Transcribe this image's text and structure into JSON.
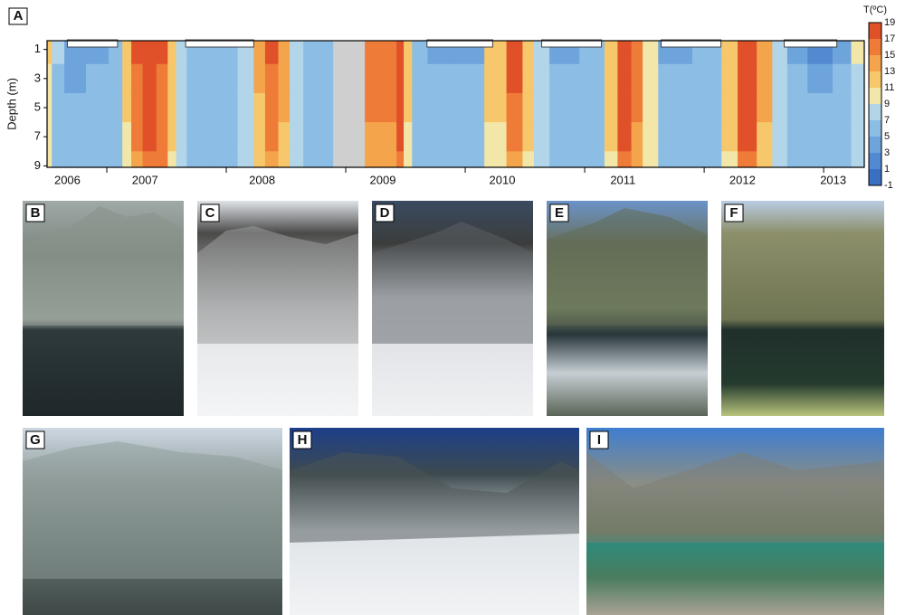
{
  "chart_data": {
    "type": "heatmap",
    "panel": "A",
    "ylabel": "Depth (m)",
    "colorbar_title": "T(ºC)",
    "xlim": [
      2006.5,
      2013.34
    ],
    "ylim": [
      0.4,
      9.1
    ],
    "xticks": [
      {
        "value": 2006.67,
        "label": "2006"
      },
      {
        "value": 2007.32,
        "label": "2007"
      },
      {
        "value": 2008.3,
        "label": "2008"
      },
      {
        "value": 2009.31,
        "label": "2009"
      },
      {
        "value": 2010.31,
        "label": "2010"
      },
      {
        "value": 2011.32,
        "label": "2011"
      },
      {
        "value": 2012.32,
        "label": "2012"
      },
      {
        "value": 2013.08,
        "label": "2013"
      }
    ],
    "xminor": [
      2007,
      2008,
      2009,
      2010,
      2011,
      2012,
      2013
    ],
    "yticks": [
      1,
      3,
      5,
      7,
      9
    ],
    "levels": [
      19,
      17,
      15,
      13,
      11,
      9,
      7,
      5,
      3,
      1,
      -1
    ],
    "colors": [
      "#3b6fc2",
      "#5289d0",
      "#6ca4db",
      "#8cbde4",
      "#b2d5ea",
      "#f2e7a8",
      "#f7c76b",
      "#f4a44b",
      "#ee7b37",
      "#e0512a"
    ],
    "missing_color": "#cfcfcf",
    "y": [
      1,
      3,
      5,
      7,
      9
    ],
    "x": [
      2006.5,
      2006.58,
      2006.71,
      2006.94,
      2007.09,
      2007.17,
      2007.24,
      2007.36,
      2007.47,
      2007.55,
      2007.61,
      2007.73,
      2008.0,
      2008.19,
      2008.27,
      2008.38,
      2008.49,
      2008.57,
      2008.72,
      2008.87,
      2008.92,
      2009.4,
      2009.45,
      2009.52,
      2009.59,
      2009.78,
      2010.05,
      2010.27,
      2010.42,
      2010.54,
      2010.61,
      2010.8,
      2011.11,
      2011.22,
      2011.33,
      2011.45,
      2011.52,
      2011.71,
      2012.09,
      2012.2,
      2012.36,
      2012.52,
      2012.62,
      2012.77,
      2012.96,
      2013.19,
      2013.27
    ],
    "values": [
      [
        11,
        10,
        9,
        9,
        9
      ],
      [
        7,
        6,
        6,
        6,
        6
      ],
      [
        4,
        4,
        5,
        5,
        5
      ],
      [
        4,
        5,
        5,
        5,
        5
      ],
      [
        6,
        6,
        6,
        6,
        6
      ],
      [
        12,
        11,
        11,
        10,
        10
      ],
      [
        17,
        16,
        15,
        15,
        14
      ],
      [
        19,
        18,
        17,
        17,
        16
      ],
      [
        17,
        16,
        16,
        15,
        15
      ],
      [
        12,
        11,
        11,
        11,
        10
      ],
      [
        8,
        8,
        8,
        8,
        8
      ],
      [
        6,
        6,
        6,
        6,
        6
      ],
      [
        5,
        5,
        6,
        6,
        6
      ],
      [
        8,
        7,
        7,
        7,
        7
      ],
      [
        13,
        13,
        12,
        12,
        11
      ],
      [
        17,
        16,
        16,
        15,
        14
      ],
      [
        13,
        13,
        13,
        12,
        12
      ],
      [
        8,
        8,
        8,
        8,
        8
      ],
      [
        6,
        6,
        6,
        6,
        6
      ],
      [
        6,
        6,
        6,
        6,
        6
      ],
      [
        null,
        null,
        null,
        null,
        null
      ],
      [
        15,
        15,
        15,
        14,
        14
      ],
      [
        18,
        18,
        17,
        17,
        16
      ],
      [
        11,
        11,
        11,
        10,
        10
      ],
      [
        6,
        6,
        6,
        6,
        6
      ],
      [
        3,
        5,
        5,
        5,
        5
      ],
      [
        4,
        5,
        6,
        6,
        6
      ],
      [
        12,
        11,
        11,
        10,
        10
      ],
      [
        17,
        17,
        16,
        15,
        14
      ],
      [
        12,
        12,
        11,
        11,
        10
      ],
      [
        7,
        7,
        7,
        7,
        7
      ],
      [
        3,
        5,
        5,
        5,
        6
      ],
      [
        5,
        6,
        6,
        6,
        6
      ],
      [
        12,
        12,
        11,
        11,
        10
      ],
      [
        18,
        18,
        17,
        17,
        16
      ],
      [
        15,
        15,
        15,
        14,
        13
      ],
      [
        9,
        9,
        9,
        9,
        9
      ],
      [
        4,
        5,
        6,
        6,
        6
      ],
      [
        5,
        5,
        6,
        6,
        6
      ],
      [
        12,
        12,
        11,
        11,
        10
      ],
      [
        18,
        18,
        17,
        17,
        16
      ],
      [
        13,
        13,
        13,
        12,
        12
      ],
      [
        7,
        7,
        7,
        7,
        7
      ],
      [
        4,
        5,
        6,
        6,
        6
      ],
      [
        2,
        4,
        5,
        6,
        6
      ],
      [
        4,
        5,
        6,
        6,
        6
      ],
      [
        9,
        8,
        8,
        8,
        8
      ]
    ],
    "ice_cover": [
      [
        2006.67,
        2007.09
      ],
      [
        2007.66,
        2008.23
      ],
      [
        2009.68,
        2010.23
      ],
      [
        2010.64,
        2011.14
      ],
      [
        2011.64,
        2012.14
      ],
      [
        2012.67,
        2013.11
      ]
    ]
  },
  "photos": [
    "B",
    "C",
    "D",
    "E",
    "F",
    "G",
    "H",
    "I"
  ]
}
